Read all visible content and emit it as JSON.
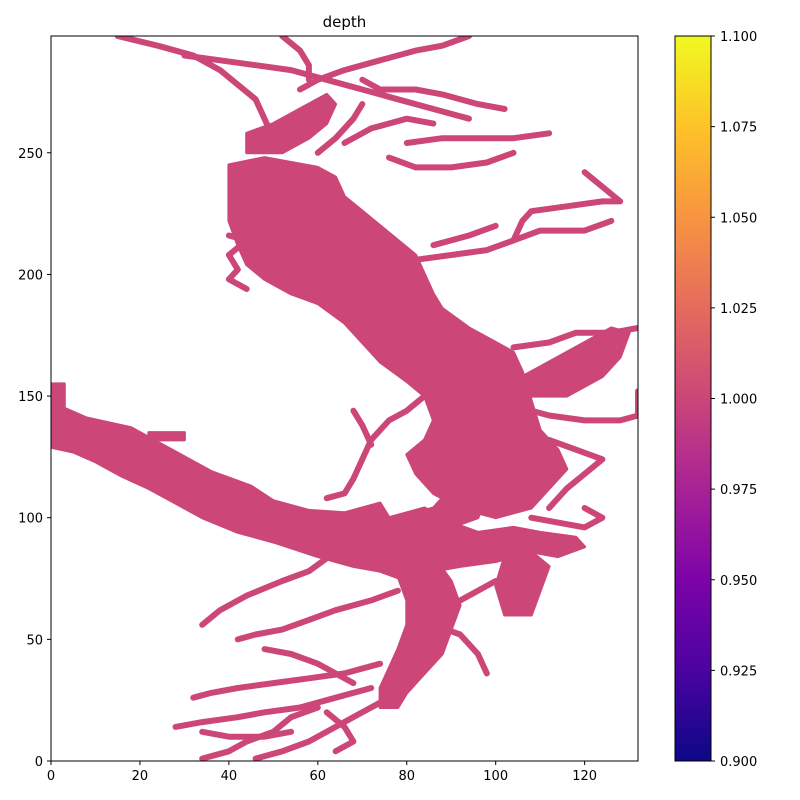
{
  "chart_data": {
    "type": "heatmap",
    "title": "depth",
    "xlabel": "",
    "ylabel": "",
    "xlim": [
      0,
      132
    ],
    "ylim": [
      0,
      298
    ],
    "x_ticks": [
      0,
      20,
      40,
      60,
      80,
      100,
      120
    ],
    "y_ticks": [
      0,
      50,
      100,
      150,
      200,
      250
    ],
    "grid": false,
    "cell_value": 1.0,
    "cell_color": "#cc4778",
    "colorbar": {
      "colormap": "plasma",
      "range": [
        0.9,
        1.1
      ],
      "ticks": [
        "0.900",
        "0.925",
        "0.950",
        "0.975",
        "1.000",
        "1.025",
        "1.050",
        "1.075",
        "1.100"
      ]
    },
    "water_regions": [
      {
        "points": [
          [
            0,
            155
          ],
          [
            3,
            155
          ],
          [
            3,
            145
          ],
          [
            8,
            141
          ],
          [
            18,
            137
          ],
          [
            22,
            133
          ],
          [
            28,
            127
          ],
          [
            36,
            119
          ],
          [
            45,
            113
          ],
          [
            50,
            107
          ],
          [
            58,
            103
          ],
          [
            66,
            102
          ],
          [
            70,
            104
          ],
          [
            74,
            106
          ],
          [
            76,
            100
          ],
          [
            84,
            104
          ],
          [
            90,
            98
          ],
          [
            96,
            94
          ],
          [
            104,
            96
          ],
          [
            110,
            94
          ],
          [
            118,
            92
          ],
          [
            120,
            88
          ],
          [
            114,
            84
          ],
          [
            108,
            86
          ],
          [
            100,
            82
          ],
          [
            92,
            80
          ],
          [
            86,
            78
          ],
          [
            80,
            74
          ],
          [
            74,
            78
          ],
          [
            68,
            80
          ],
          [
            60,
            84
          ],
          [
            50,
            90
          ],
          [
            42,
            94
          ],
          [
            34,
            100
          ],
          [
            28,
            106
          ],
          [
            22,
            112
          ],
          [
            16,
            117
          ],
          [
            10,
            123
          ],
          [
            5,
            127
          ],
          [
            0,
            129
          ]
        ]
      },
      {
        "points": [
          [
            22,
            135
          ],
          [
            30,
            135
          ],
          [
            30,
            132
          ],
          [
            22,
            132
          ]
        ]
      },
      {
        "points": [
          [
            40,
            245
          ],
          [
            48,
            248
          ],
          [
            54,
            246
          ],
          [
            60,
            244
          ],
          [
            64,
            240
          ],
          [
            66,
            232
          ],
          [
            70,
            226
          ],
          [
            74,
            220
          ],
          [
            78,
            214
          ],
          [
            82,
            208
          ],
          [
            84,
            200
          ],
          [
            86,
            192
          ],
          [
            88,
            186
          ],
          [
            94,
            178
          ],
          [
            100,
            172
          ],
          [
            104,
            168
          ],
          [
            106,
            160
          ],
          [
            108,
            148
          ],
          [
            110,
            136
          ],
          [
            114,
            128
          ],
          [
            116,
            120
          ],
          [
            112,
            112
          ],
          [
            108,
            104
          ],
          [
            100,
            100
          ],
          [
            92,
            104
          ],
          [
            86,
            110
          ],
          [
            82,
            118
          ],
          [
            80,
            126
          ],
          [
            84,
            132
          ],
          [
            86,
            140
          ],
          [
            84,
            150
          ],
          [
            80,
            156
          ],
          [
            74,
            164
          ],
          [
            70,
            172
          ],
          [
            66,
            180
          ],
          [
            60,
            188
          ],
          [
            54,
            192
          ],
          [
            48,
            198
          ],
          [
            44,
            204
          ],
          [
            42,
            212
          ],
          [
            40,
            222
          ],
          [
            40,
            232
          ]
        ]
      },
      {
        "points": [
          [
            78,
            100
          ],
          [
            86,
            104
          ],
          [
            90,
            112
          ],
          [
            94,
            116
          ],
          [
            98,
            110
          ],
          [
            96,
            100
          ],
          [
            90,
            96
          ],
          [
            82,
            96
          ]
        ]
      },
      {
        "points": [
          [
            80,
            88
          ],
          [
            86,
            84
          ],
          [
            90,
            74
          ],
          [
            92,
            64
          ],
          [
            90,
            54
          ],
          [
            88,
            44
          ],
          [
            84,
            36
          ],
          [
            80,
            28
          ],
          [
            78,
            22
          ],
          [
            74,
            22
          ],
          [
            74,
            30
          ],
          [
            76,
            38
          ],
          [
            78,
            46
          ],
          [
            80,
            56
          ],
          [
            80,
            66
          ],
          [
            78,
            76
          ],
          [
            76,
            84
          ]
        ]
      },
      {
        "points": [
          [
            102,
            60
          ],
          [
            108,
            60
          ],
          [
            110,
            70
          ],
          [
            112,
            80
          ],
          [
            108,
            86
          ],
          [
            102,
            84
          ],
          [
            100,
            72
          ]
        ]
      },
      {
        "points": [
          [
            44,
            250
          ],
          [
            52,
            250
          ],
          [
            58,
            256
          ],
          [
            62,
            262
          ],
          [
            64,
            270
          ],
          [
            62,
            274
          ],
          [
            56,
            268
          ],
          [
            50,
            262
          ],
          [
            44,
            258
          ]
        ]
      },
      {
        "points": [
          [
            104,
            150
          ],
          [
            116,
            150
          ],
          [
            124,
            158
          ],
          [
            128,
            166
          ],
          [
            130,
            176
          ],
          [
            126,
            178
          ],
          [
            118,
            170
          ],
          [
            110,
            162
          ],
          [
            104,
            156
          ]
        ]
      }
    ],
    "channels": [
      {
        "points": [
          [
            15,
            298
          ],
          [
            24,
            294
          ],
          [
            32,
            290
          ],
          [
            38,
            284
          ],
          [
            42,
            278
          ],
          [
            46,
            272
          ],
          [
            48,
            264
          ],
          [
            50,
            256
          ]
        ]
      },
      {
        "points": [
          [
            30,
            290
          ],
          [
            38,
            288
          ],
          [
            46,
            286
          ],
          [
            54,
            284
          ],
          [
            62,
            280
          ],
          [
            70,
            276
          ],
          [
            78,
            272
          ],
          [
            86,
            268
          ],
          [
            94,
            264
          ]
        ]
      },
      {
        "points": [
          [
            94,
            298
          ],
          [
            88,
            294
          ],
          [
            82,
            292
          ],
          [
            74,
            288
          ],
          [
            66,
            284
          ],
          [
            60,
            280
          ],
          [
            56,
            276
          ]
        ]
      },
      {
        "points": [
          [
            52,
            298
          ],
          [
            56,
            292
          ],
          [
            58,
            286
          ],
          [
            58,
            280
          ]
        ]
      },
      {
        "points": [
          [
            70,
            280
          ],
          [
            74,
            276
          ],
          [
            82,
            276
          ],
          [
            88,
            274
          ],
          [
            96,
            270
          ],
          [
            102,
            268
          ]
        ]
      },
      {
        "points": [
          [
            80,
            254
          ],
          [
            88,
            256
          ],
          [
            96,
            256
          ],
          [
            104,
            256
          ],
          [
            112,
            258
          ]
        ]
      },
      {
        "points": [
          [
            66,
            254
          ],
          [
            72,
            260
          ],
          [
            80,
            264
          ],
          [
            86,
            262
          ]
        ]
      },
      {
        "points": [
          [
            76,
            248
          ],
          [
            82,
            244
          ],
          [
            90,
            244
          ],
          [
            98,
            246
          ],
          [
            104,
            250
          ]
        ]
      },
      {
        "points": [
          [
            60,
            250
          ],
          [
            64,
            256
          ],
          [
            68,
            264
          ],
          [
            70,
            270
          ]
        ]
      },
      {
        "points": [
          [
            40,
            216
          ],
          [
            44,
            214
          ],
          [
            40,
            208
          ],
          [
            42,
            202
          ],
          [
            40,
            198
          ],
          [
            44,
            194
          ]
        ]
      },
      {
        "points": [
          [
            82,
            206
          ],
          [
            90,
            208
          ],
          [
            98,
            210
          ],
          [
            104,
            214
          ],
          [
            110,
            218
          ],
          [
            120,
            218
          ],
          [
            126,
            222
          ]
        ]
      },
      {
        "points": [
          [
            104,
            214
          ],
          [
            106,
            222
          ],
          [
            108,
            226
          ],
          [
            116,
            228
          ],
          [
            124,
            230
          ],
          [
            128,
            230
          ],
          [
            124,
            236
          ],
          [
            120,
            242
          ]
        ]
      },
      {
        "points": [
          [
            86,
            212
          ],
          [
            94,
            216
          ],
          [
            100,
            220
          ]
        ]
      },
      {
        "points": [
          [
            104,
            170
          ],
          [
            112,
            172
          ],
          [
            118,
            176
          ],
          [
            126,
            176
          ],
          [
            132,
            178
          ]
        ]
      },
      {
        "points": [
          [
            104,
            146
          ],
          [
            112,
            142
          ],
          [
            120,
            140
          ],
          [
            128,
            140
          ],
          [
            132,
            142
          ],
          [
            132,
            152
          ]
        ]
      },
      {
        "points": [
          [
            112,
            132
          ],
          [
            118,
            128
          ],
          [
            124,
            124
          ],
          [
            120,
            118
          ],
          [
            116,
            112
          ],
          [
            112,
            104
          ]
        ]
      },
      {
        "points": [
          [
            108,
            100
          ],
          [
            114,
            98
          ],
          [
            120,
            96
          ],
          [
            124,
            100
          ],
          [
            120,
            104
          ]
        ]
      },
      {
        "points": [
          [
            84,
            150
          ],
          [
            80,
            144
          ],
          [
            76,
            140
          ],
          [
            72,
            132
          ],
          [
            70,
            124
          ],
          [
            68,
            116
          ],
          [
            66,
            110
          ],
          [
            62,
            108
          ]
        ]
      },
      {
        "points": [
          [
            68,
            144
          ],
          [
            70,
            138
          ],
          [
            72,
            130
          ]
        ]
      },
      {
        "points": [
          [
            64,
            86
          ],
          [
            58,
            78
          ],
          [
            52,
            74
          ],
          [
            44,
            68
          ],
          [
            38,
            62
          ],
          [
            34,
            56
          ]
        ]
      },
      {
        "points": [
          [
            78,
            70
          ],
          [
            72,
            66
          ],
          [
            64,
            62
          ],
          [
            58,
            58
          ],
          [
            52,
            54
          ],
          [
            46,
            52
          ],
          [
            42,
            50
          ]
        ]
      },
      {
        "points": [
          [
            100,
            74
          ],
          [
            94,
            68
          ],
          [
            88,
            62
          ],
          [
            84,
            54
          ]
        ]
      },
      {
        "points": [
          [
            86,
            56
          ],
          [
            92,
            52
          ],
          [
            96,
            44
          ],
          [
            98,
            36
          ]
        ]
      },
      {
        "points": [
          [
            74,
            40
          ],
          [
            66,
            36
          ],
          [
            58,
            34
          ],
          [
            50,
            32
          ],
          [
            42,
            30
          ],
          [
            36,
            28
          ],
          [
            32,
            26
          ]
        ]
      },
      {
        "points": [
          [
            72,
            30
          ],
          [
            64,
            26
          ],
          [
            56,
            22
          ],
          [
            48,
            20
          ],
          [
            42,
            18
          ],
          [
            34,
            16
          ],
          [
            28,
            14
          ]
        ]
      },
      {
        "points": [
          [
            76,
            26
          ],
          [
            70,
            20
          ],
          [
            64,
            14
          ],
          [
            58,
            8
          ],
          [
            52,
            4
          ],
          [
            46,
            1
          ]
        ]
      },
      {
        "points": [
          [
            60,
            22
          ],
          [
            54,
            18
          ],
          [
            50,
            12
          ],
          [
            44,
            8
          ],
          [
            40,
            4
          ],
          [
            34,
            1
          ]
        ]
      },
      {
        "points": [
          [
            68,
            32
          ],
          [
            60,
            40
          ],
          [
            54,
            44
          ],
          [
            48,
            46
          ]
        ]
      },
      {
        "points": [
          [
            62,
            20
          ],
          [
            66,
            14
          ],
          [
            68,
            8
          ],
          [
            64,
            4
          ]
        ]
      },
      {
        "points": [
          [
            34,
            12
          ],
          [
            40,
            10
          ],
          [
            48,
            10
          ],
          [
            54,
            12
          ]
        ]
      }
    ]
  }
}
